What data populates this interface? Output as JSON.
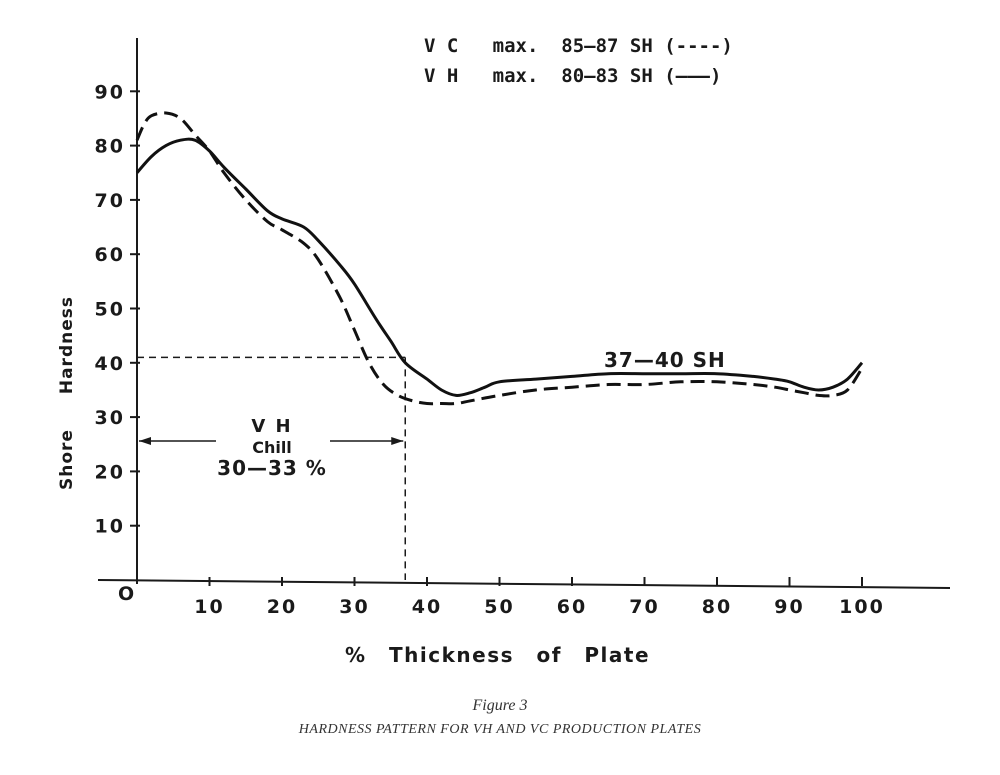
{
  "chart_data": {
    "type": "line",
    "title": "",
    "xlabel": "% Thickness of Plate",
    "ylabel": "Shore Hardness",
    "xlim": [
      0,
      100
    ],
    "ylim": [
      0,
      100
    ],
    "x_origin_label": "O",
    "x_ticks": [
      10,
      20,
      30,
      40,
      50,
      60,
      70,
      80,
      90,
      100
    ],
    "y_ticks": [
      10,
      20,
      30,
      40,
      50,
      60,
      70,
      80,
      90
    ],
    "grid": false,
    "legend": [
      {
        "text": "V C   max.  85—87 SH (----)",
        "style": "dashed",
        "series": "VC"
      },
      {
        "text": "V H   max.  80—83 SH (———)",
        "style": "solid",
        "series": "VH"
      }
    ],
    "legend_placement": "top-right",
    "series": [
      {
        "name": "VC",
        "line_style": "dashed",
        "x": [
          0,
          1,
          2,
          4,
          6,
          8,
          10,
          12,
          15,
          18,
          20,
          23,
          25,
          28,
          30,
          32,
          34,
          36,
          38,
          40,
          42,
          44,
          46,
          50,
          55,
          60,
          65,
          70,
          75,
          80,
          85,
          88,
          90,
          92,
          94,
          96,
          98,
          100
        ],
        "y": [
          81,
          84,
          85.5,
          86,
          85,
          82,
          79,
          75,
          70,
          66,
          64.5,
          62,
          59,
          52,
          46,
          40,
          36,
          34,
          33,
          32.5,
          32.5,
          32.5,
          33,
          34,
          35,
          35.5,
          36,
          36,
          36.5,
          36.5,
          36,
          35.5,
          35,
          34.5,
          34,
          34,
          35,
          39
        ]
      },
      {
        "name": "VH",
        "line_style": "solid",
        "x": [
          0,
          2,
          4,
          6,
          8,
          10,
          12,
          15,
          18,
          20,
          23,
          25,
          28,
          30,
          33,
          35,
          37,
          40,
          42,
          44,
          46,
          48,
          50,
          55,
          60,
          65,
          70,
          75,
          80,
          85,
          88,
          90,
          92,
          94,
          96,
          98,
          100
        ],
        "y": [
          75,
          78,
          80,
          81,
          81,
          79,
          76,
          72,
          68,
          66.5,
          65,
          62.5,
          58,
          54.5,
          48,
          44,
          40,
          37,
          35,
          34,
          34.5,
          35.5,
          36.5,
          37,
          37.5,
          38,
          38,
          38,
          38,
          37.5,
          37,
          36.5,
          35.5,
          35,
          35.5,
          37,
          40
        ]
      }
    ],
    "annotations": {
      "plateau_label": "37—40 SH",
      "chill_line1": "V H",
      "chill_line2": "Chill",
      "chill_line3": "30—33 %",
      "chill_level_y": 41,
      "chill_boundary_x": 37
    }
  },
  "figure_label": "Figure 3",
  "caption": "HARDNESS PATTERN FOR VH AND VC PRODUCTION PLATES"
}
